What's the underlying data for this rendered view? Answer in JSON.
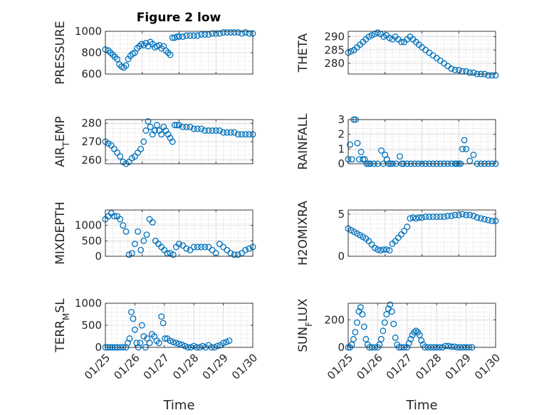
{
  "figure": {
    "title": "Figure 2 low",
    "marker_color": "#0072BD"
  },
  "chart_data": [
    {
      "type": "scatter",
      "ylabel": "PRESSURE",
      "ylim": [
        600,
        1000
      ],
      "yticks": [
        600,
        800,
        1000
      ],
      "xlim": [
        0,
        4
      ],
      "xtick_labels": [],
      "x": [
        0.0,
        0.08,
        0.14,
        0.2,
        0.26,
        0.32,
        0.38,
        0.44,
        0.5,
        0.56,
        0.62,
        0.68,
        0.74,
        0.8,
        0.86,
        0.92,
        0.98,
        1.04,
        1.1,
        1.16,
        1.22,
        1.28,
        1.34,
        1.4,
        1.46,
        1.52,
        1.58,
        1.64,
        1.7,
        1.76,
        1.82,
        1.88,
        1.94,
        2.0,
        2.1,
        2.2,
        2.3,
        2.4,
        2.5,
        2.6,
        2.7,
        2.8,
        2.9,
        3.0,
        3.1,
        3.2,
        3.3,
        3.4,
        3.5,
        3.6,
        3.7,
        3.8,
        3.9,
        4.0
      ],
      "y": [
        830,
        820,
        800,
        780,
        760,
        740,
        690,
        670,
        660,
        680,
        740,
        770,
        790,
        800,
        840,
        860,
        880,
        870,
        890,
        860,
        900,
        880,
        850,
        860,
        870,
        840,
        860,
        820,
        800,
        780,
        940,
        940,
        950,
        950,
        950,
        960,
        960,
        960,
        960,
        970,
        970,
        970,
        980,
        980,
        980,
        990,
        990,
        990,
        990,
        990,
        980,
        990,
        980,
        980
      ]
    },
    {
      "type": "scatter",
      "ylabel": "THETA",
      "ylim": [
        276,
        292
      ],
      "yticks": [
        280,
        285,
        290
      ],
      "xlim": [
        0,
        4
      ],
      "xtick_labels": [],
      "x": [
        0.0,
        0.08,
        0.16,
        0.24,
        0.32,
        0.4,
        0.48,
        0.56,
        0.64,
        0.72,
        0.8,
        0.88,
        0.96,
        1.04,
        1.12,
        1.2,
        1.28,
        1.36,
        1.44,
        1.52,
        1.6,
        1.68,
        1.76,
        1.84,
        1.92,
        2.0,
        2.1,
        2.2,
        2.3,
        2.4,
        2.5,
        2.6,
        2.7,
        2.8,
        2.9,
        3.0,
        3.1,
        3.2,
        3.3,
        3.4,
        3.5,
        3.6,
        3.7,
        3.8,
        3.9,
        4.0
      ],
      "y": [
        284,
        284.5,
        285,
        286,
        287,
        288,
        289,
        290,
        290.5,
        291,
        291.5,
        291,
        290,
        290.5,
        289.5,
        289,
        290,
        289,
        288,
        288,
        289,
        290,
        289,
        288,
        287,
        286,
        285,
        284,
        283,
        282,
        281,
        280,
        279,
        278,
        277.5,
        277.5,
        277,
        277,
        276.5,
        276.5,
        276,
        276,
        276,
        275.5,
        275.5,
        275.5
      ]
    },
    {
      "type": "scatter",
      "ylabel": "AIR_TEMP",
      "ylim": [
        258,
        282
      ],
      "yticks": [
        260,
        270,
        280
      ],
      "xlim": [
        0,
        4
      ],
      "xtick_labels": [],
      "x": [
        0.0,
        0.08,
        0.16,
        0.24,
        0.32,
        0.4,
        0.48,
        0.56,
        0.64,
        0.72,
        0.8,
        0.88,
        0.96,
        1.04,
        1.1,
        1.16,
        1.22,
        1.28,
        1.34,
        1.4,
        1.46,
        1.52,
        1.58,
        1.64,
        1.7,
        1.76,
        1.82,
        1.88,
        1.94,
        2.0,
        2.1,
        2.2,
        2.3,
        2.4,
        2.5,
        2.6,
        2.7,
        2.8,
        2.9,
        3.0,
        3.1,
        3.2,
        3.3,
        3.4,
        3.5,
        3.6,
        3.7,
        3.8,
        3.9,
        4.0
      ],
      "y": [
        270,
        269,
        268,
        266,
        264,
        262,
        259,
        258,
        259,
        261,
        262,
        264,
        266,
        270,
        276,
        281,
        278,
        274,
        276,
        279,
        276,
        274,
        278,
        276,
        274,
        272,
        270,
        279,
        279,
        279,
        278,
        278,
        278,
        277,
        277,
        277,
        276,
        276,
        276,
        276,
        276,
        275,
        275,
        275,
        275,
        274,
        274,
        274,
        274,
        274
      ]
    },
    {
      "type": "scatter",
      "ylabel": "RAINFALL",
      "ylim": [
        0,
        3
      ],
      "yticks": [
        0,
        1,
        2,
        3
      ],
      "xlim": [
        0,
        4
      ],
      "xtick_labels": [],
      "x": [
        0.0,
        0.05,
        0.1,
        0.15,
        0.2,
        0.25,
        0.3,
        0.35,
        0.4,
        0.45,
        0.5,
        0.55,
        0.6,
        0.7,
        0.8,
        0.9,
        0.95,
        1.0,
        1.05,
        1.1,
        1.15,
        1.2,
        1.3,
        1.4,
        1.45,
        1.5,
        1.6,
        1.7,
        1.8,
        1.9,
        2.0,
        2.1,
        2.2,
        2.3,
        2.4,
        2.5,
        2.6,
        2.7,
        2.8,
        2.9,
        2.95,
        3.0,
        3.05,
        3.1,
        3.15,
        3.2,
        3.3,
        3.4,
        3.5,
        3.6,
        3.7,
        3.8,
        3.9,
        4.0
      ],
      "y": [
        0.3,
        1.3,
        0.3,
        3,
        3,
        1.4,
        0.3,
        0.8,
        0.3,
        0.3,
        0,
        0,
        0,
        0,
        0,
        0.9,
        0,
        0.6,
        0.3,
        0,
        0,
        0,
        0,
        0.5,
        0,
        0,
        0,
        0,
        0,
        0,
        0,
        0,
        0,
        0,
        0,
        0,
        0,
        0,
        0,
        0,
        0,
        0,
        0,
        1,
        1.6,
        1,
        0.2,
        0.6,
        0,
        0,
        0,
        0,
        0,
        0
      ]
    },
    {
      "type": "scatter",
      "ylabel": "MIXDEPTH",
      "ylim": [
        0,
        1500
      ],
      "yticks": [
        0,
        500,
        1000
      ],
      "xlim": [
        0,
        4
      ],
      "xtick_labels": [],
      "x": [
        0.0,
        0.08,
        0.16,
        0.24,
        0.32,
        0.4,
        0.48,
        0.56,
        0.64,
        0.72,
        0.8,
        0.88,
        0.96,
        1.04,
        1.12,
        1.2,
        1.28,
        1.36,
        1.44,
        1.52,
        1.6,
        1.68,
        1.76,
        1.84,
        1.92,
        2.0,
        2.1,
        2.2,
        2.3,
        2.4,
        2.5,
        2.6,
        2.7,
        2.8,
        2.9,
        3.0,
        3.1,
        3.2,
        3.3,
        3.4,
        3.5,
        3.6,
        3.7,
        3.8,
        3.9,
        4.0
      ],
      "y": [
        1200,
        1300,
        1400,
        1300,
        1300,
        1200,
        1000,
        800,
        50,
        100,
        400,
        800,
        200,
        500,
        700,
        1200,
        1100,
        500,
        400,
        300,
        200,
        100,
        100,
        50,
        300,
        400,
        350,
        250,
        200,
        300,
        300,
        300,
        300,
        300,
        200,
        100,
        400,
        300,
        200,
        100,
        50,
        50,
        100,
        200,
        250,
        300
      ]
    },
    {
      "type": "scatter",
      "ylabel": "H2OMIXRA",
      "ylim": [
        0,
        5.5
      ],
      "yticks": [
        0,
        5
      ],
      "xlim": [
        0,
        4
      ],
      "xtick_labels": [],
      "x": [
        0.0,
        0.08,
        0.16,
        0.24,
        0.32,
        0.4,
        0.48,
        0.56,
        0.64,
        0.72,
        0.8,
        0.88,
        0.96,
        1.04,
        1.12,
        1.2,
        1.28,
        1.36,
        1.44,
        1.52,
        1.6,
        1.68,
        1.76,
        1.84,
        1.92,
        2.0,
        2.1,
        2.2,
        2.3,
        2.4,
        2.5,
        2.6,
        2.7,
        2.8,
        2.9,
        3.0,
        3.1,
        3.2,
        3.3,
        3.4,
        3.5,
        3.6,
        3.7,
        3.8,
        3.9,
        4.0
      ],
      "y": [
        3.3,
        3.1,
        2.9,
        2.7,
        2.5,
        2.3,
        2.1,
        1.8,
        1.4,
        1.0,
        0.8,
        0.7,
        0.8,
        0.8,
        0.7,
        1.5,
        1.8,
        2.2,
        2.6,
        3.0,
        3.5,
        4.5,
        4.6,
        4.5,
        4.6,
        4.6,
        4.7,
        4.7,
        4.7,
        4.7,
        4.7,
        4.7,
        4.8,
        4.8,
        4.9,
        4.9,
        5.0,
        4.9,
        4.9,
        4.8,
        4.6,
        4.5,
        4.4,
        4.3,
        4.2,
        4.2
      ]
    },
    {
      "type": "scatter",
      "ylabel": "TERR_MSL",
      "ylim": [
        0,
        1000
      ],
      "yticks": [
        0,
        500,
        1000
      ],
      "xlim": [
        0,
        5
      ],
      "xtick_labels": [
        "01/25",
        "01/26",
        "01/27",
        "01/28",
        "01/29",
        "01/30"
      ],
      "xlabel": "Time",
      "x": [
        0.0,
        0.08,
        0.16,
        0.24,
        0.32,
        0.4,
        0.5,
        0.6,
        0.7,
        0.76,
        0.82,
        0.88,
        0.94,
        1.0,
        1.06,
        1.12,
        1.18,
        1.24,
        1.3,
        1.36,
        1.42,
        1.5,
        1.58,
        1.66,
        1.74,
        1.82,
        1.9,
        1.96,
        2.02,
        2.1,
        2.2,
        2.3,
        2.4,
        2.5,
        2.6,
        2.7,
        2.8,
        2.9,
        3.0,
        3.1,
        3.2,
        3.3,
        3.4,
        3.5,
        3.6,
        3.7,
        3.8,
        3.9,
        4.0,
        4.1,
        4.2
      ],
      "y": [
        0,
        0,
        0,
        0,
        0,
        0,
        0,
        0,
        0,
        100,
        200,
        800,
        650,
        400,
        100,
        0,
        100,
        500,
        250,
        0,
        200,
        100,
        300,
        250,
        150,
        100,
        700,
        550,
        200,
        200,
        150,
        120,
        100,
        80,
        60,
        30,
        0,
        0,
        30,
        0,
        0,
        30,
        0,
        50,
        0,
        0,
        30,
        50,
        100,
        120,
        150
      ]
    },
    {
      "type": "scatter",
      "ylabel": "SUN_FLUX",
      "ylim": [
        0,
        320
      ],
      "yticks": [
        0,
        200
      ],
      "xlim": [
        0,
        5
      ],
      "xtick_labels": [
        "01/25",
        "01/26",
        "01/27",
        "01/28",
        "01/29",
        "01/30"
      ],
      "xlabel": "Time",
      "x": [
        0.0,
        0.06,
        0.12,
        0.18,
        0.24,
        0.3,
        0.36,
        0.42,
        0.48,
        0.54,
        0.6,
        0.66,
        0.72,
        0.8,
        0.9,
        1.0,
        1.06,
        1.12,
        1.18,
        1.24,
        1.3,
        1.36,
        1.42,
        1.48,
        1.54,
        1.6,
        1.66,
        1.72,
        1.8,
        1.9,
        2.0,
        2.06,
        2.12,
        2.18,
        2.24,
        2.3,
        2.36,
        2.42,
        2.48,
        2.54,
        2.6,
        2.7,
        2.8,
        2.9,
        3.0,
        3.1,
        3.2,
        3.3,
        3.4,
        3.5,
        3.6,
        3.7,
        3.8,
        3.9,
        4.0,
        4.1,
        4.2
      ],
      "y": [
        0,
        0,
        20,
        60,
        110,
        180,
        260,
        290,
        240,
        150,
        60,
        20,
        0,
        0,
        0,
        0,
        20,
        60,
        120,
        180,
        240,
        280,
        310,
        260,
        170,
        70,
        20,
        0,
        0,
        0,
        0,
        30,
        60,
        90,
        110,
        120,
        110,
        90,
        50,
        20,
        0,
        0,
        0,
        0,
        0,
        0,
        0,
        10,
        10,
        5,
        5,
        0,
        0,
        0,
        0,
        0,
        0
      ]
    }
  ]
}
